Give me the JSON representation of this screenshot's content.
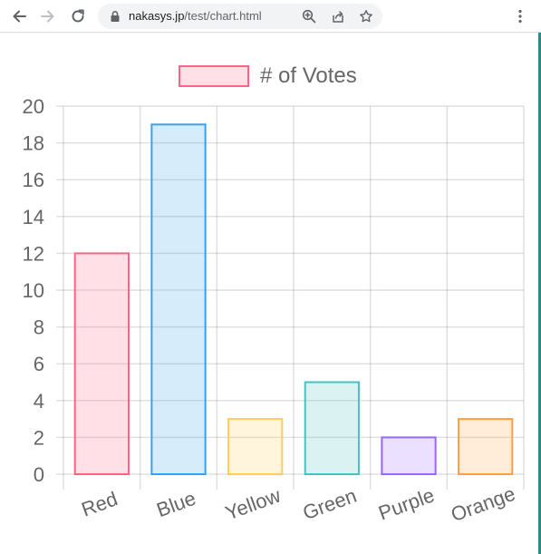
{
  "browser": {
    "url_host": "nakasys.jp",
    "url_path": "/test/chart.html",
    "icons": {
      "back": "back-arrow-icon",
      "forward": "forward-arrow-icon",
      "reload": "reload-icon",
      "lock": "lock-icon",
      "zoom": "zoom-icon",
      "share": "share-icon",
      "bookmark": "star-icon",
      "menu": "kebab-menu-icon"
    }
  },
  "chart_data": {
    "type": "bar",
    "categories": [
      "Red",
      "Blue",
      "Yellow",
      "Green",
      "Purple",
      "Orange"
    ],
    "series": [
      {
        "name": "# of Votes",
        "values": [
          12,
          19,
          3,
          5,
          2,
          3
        ]
      }
    ],
    "colors": {
      "fill": [
        "rgba(255, 99, 132, 0.2)",
        "rgba(54, 162, 235, 0.2)",
        "rgba(255, 206, 86, 0.2)",
        "rgba(75, 192, 192, 0.2)",
        "rgba(153, 102, 255, 0.2)",
        "rgba(255, 159, 64, 0.2)"
      ],
      "border": [
        "#ff6384",
        "#36a2eb",
        "#ffce56",
        "#4bc0c0",
        "#9966ff",
        "#ff9f40"
      ]
    },
    "y_ticks": [
      "0",
      "2",
      "4",
      "6",
      "8",
      "10",
      "12",
      "14",
      "16",
      "18",
      "20"
    ],
    "ylim": [
      0,
      20
    ],
    "grid": true,
    "legend_position": "top",
    "x_tick_rotation": "slanted"
  }
}
